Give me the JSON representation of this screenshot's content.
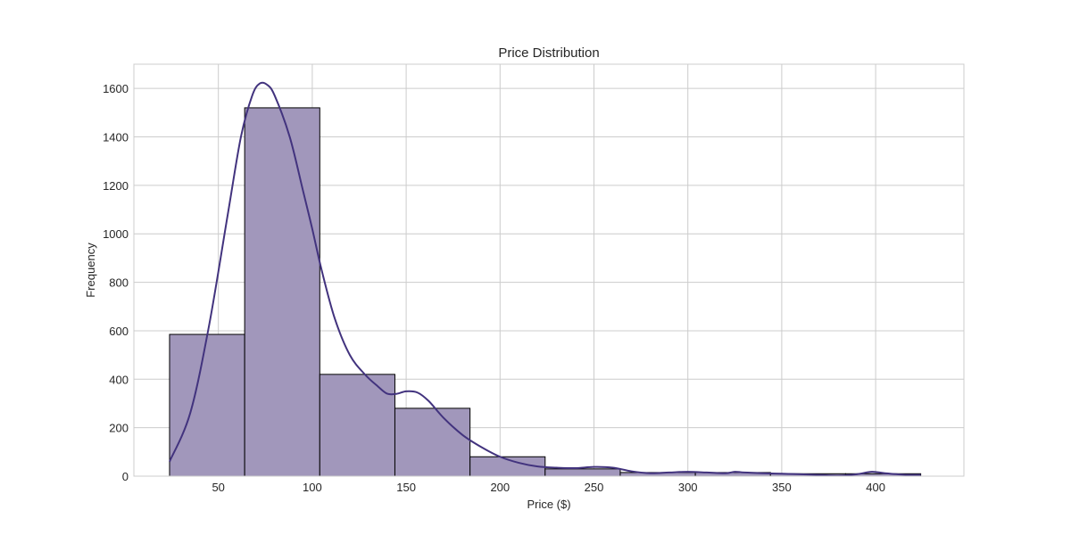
{
  "chart_data": {
    "type": "bar",
    "title": "Price Distribution",
    "xlabel": "Price ($)",
    "ylabel": "Frequency",
    "xlim": [
      5,
      447
    ],
    "ylim": [
      0,
      1700
    ],
    "xticks": [
      50,
      100,
      150,
      200,
      250,
      300,
      350,
      400
    ],
    "yticks": [
      0,
      200,
      400,
      600,
      800,
      1000,
      1200,
      1400,
      1600
    ],
    "grid": true,
    "bins": [
      {
        "x0": 24,
        "x1": 64,
        "value": 585
      },
      {
        "x0": 64,
        "x1": 104,
        "value": 1520
      },
      {
        "x0": 104,
        "x1": 144,
        "value": 420
      },
      {
        "x0": 144,
        "x1": 184,
        "value": 280
      },
      {
        "x0": 184,
        "x1": 224,
        "value": 80
      },
      {
        "x0": 224,
        "x1": 264,
        "value": 30
      },
      {
        "x0": 264,
        "x1": 304,
        "value": 15
      },
      {
        "x0": 304,
        "x1": 344,
        "value": 15
      },
      {
        "x0": 344,
        "x1": 384,
        "value": 10
      },
      {
        "x0": 384,
        "x1": 424,
        "value": 10
      }
    ],
    "kde": {
      "x": [
        24,
        35,
        45,
        55,
        62,
        68,
        72,
        76,
        80,
        88,
        95,
        100,
        105,
        112,
        120,
        128,
        135,
        140,
        145,
        150,
        156,
        162,
        170,
        180,
        190,
        200,
        210,
        220,
        230,
        240,
        250,
        260,
        270,
        280,
        290,
        300,
        310,
        320,
        325,
        330,
        340,
        350,
        360,
        370,
        380,
        390,
        398,
        405,
        415,
        424
      ],
      "y": [
        60,
        260,
        620,
        1080,
        1400,
        1570,
        1620,
        1615,
        1570,
        1400,
        1180,
        1020,
        850,
        650,
        500,
        420,
        370,
        340,
        340,
        350,
        345,
        310,
        240,
        170,
        120,
        80,
        55,
        40,
        35,
        33,
        38,
        35,
        20,
        12,
        15,
        18,
        15,
        12,
        18,
        15,
        12,
        10,
        8,
        5,
        2,
        8,
        18,
        12,
        6,
        5
      ]
    },
    "colors": {
      "bar_fill": "#a197bb",
      "bar_edge": "#000000",
      "kde_line": "#42337e",
      "grid": "#cccccc",
      "frame": "#cccccc",
      "text": "#262626"
    }
  }
}
